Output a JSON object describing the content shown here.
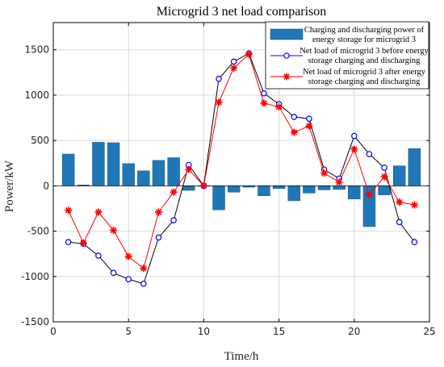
{
  "chart_data": {
    "type": "bar",
    "title": "Microgrid 3 net load comparison",
    "xlabel": "Time/h",
    "ylabel": "Power/kW",
    "xlim": [
      0,
      25
    ],
    "ylim": [
      -1500,
      1800
    ],
    "xticks": [
      "0",
      "5",
      "10",
      "15",
      "20",
      "25"
    ],
    "yticks": [
      "1500",
      "1000",
      "500",
      "0",
      "-500",
      "-1000",
      "-1500"
    ],
    "grid": true,
    "legend_position": "top-right",
    "x": [
      1,
      2,
      3,
      4,
      5,
      6,
      7,
      8,
      9,
      10,
      11,
      12,
      13,
      14,
      15,
      16,
      17,
      18,
      19,
      20,
      21,
      22,
      23,
      24
    ],
    "series": [
      {
        "name": "Charging and discharging power of energy storage for microgrid 3",
        "kind": "bar",
        "color": "#1f77b8",
        "values": [
          350,
          10,
          480,
          475,
          245,
          165,
          280,
          310,
          -50,
          0,
          -265,
          -70,
          -15,
          -110,
          -30,
          -165,
          -80,
          -45,
          -40,
          -145,
          -450,
          -100,
          220,
          410
        ]
      },
      {
        "name": "Net load of microgrid 3 before energy storage charging and discharging",
        "kind": "line",
        "color": "#0000ff",
        "marker": "circle",
        "values": [
          -620,
          -640,
          -770,
          -960,
          -1030,
          -1080,
          -570,
          -380,
          230,
          0,
          1180,
          1370,
          1460,
          1020,
          900,
          760,
          740,
          180,
          80,
          550,
          350,
          200,
          -400,
          -620
        ]
      },
      {
        "name": "Net load of microgrid 3 after energy storage charging and discharging",
        "kind": "line",
        "color": "#ff0000",
        "marker": "star",
        "values": [
          -270,
          -630,
          -290,
          -490,
          -780,
          -910,
          -290,
          -70,
          180,
          0,
          920,
          1300,
          1450,
          910,
          870,
          590,
          660,
          140,
          40,
          405,
          -100,
          100,
          -180,
          -210
        ]
      }
    ]
  },
  "legend": {
    "entries": [
      {
        "line1": "Charging and discharging power of",
        "line2": "energy storage for microgrid 3"
      },
      {
        "line1": "Net load of microgrid 3 before energy",
        "line2": "storage charging and discharging"
      },
      {
        "line1": "Net load of microgrid 3 after energy",
        "line2": "storage charging and discharging"
      }
    ]
  }
}
